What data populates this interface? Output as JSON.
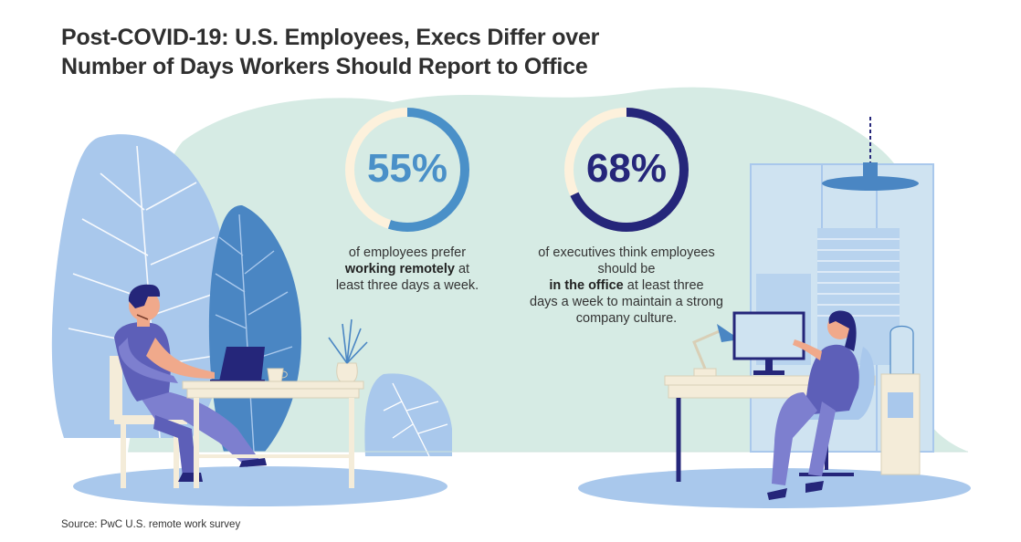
{
  "title": {
    "line1": "Post-COVID-19: U.S. Employees, Execs Differ over",
    "line2": "Number of Days Workers Should Report to Office"
  },
  "stats": [
    {
      "value": 55,
      "label": "55%",
      "text_pre": "of employees prefer",
      "text_bold": "working remotely",
      "text_mid": " at",
      "text_post": "least three days a week.",
      "color": "#4a90c8",
      "track_color": "#fdf1dc"
    },
    {
      "value": 68,
      "label": "68%",
      "text_pre": "of executives think employees should be",
      "text_bold": "in the office",
      "text_mid": " at least three",
      "text_post": "days a week to maintain a strong company culture.",
      "color": "#25267a",
      "track_color": "#fdf1dc"
    }
  ],
  "source": "Source: PwC U.S. remote work survey",
  "colors": {
    "background_blob": "#d6ebe4",
    "leaf_light": "#a9c8ec",
    "leaf_mid": "#4a86c3",
    "floor": "#a9c8ec",
    "navy": "#25267a",
    "desk": "#f4ecd9"
  }
}
